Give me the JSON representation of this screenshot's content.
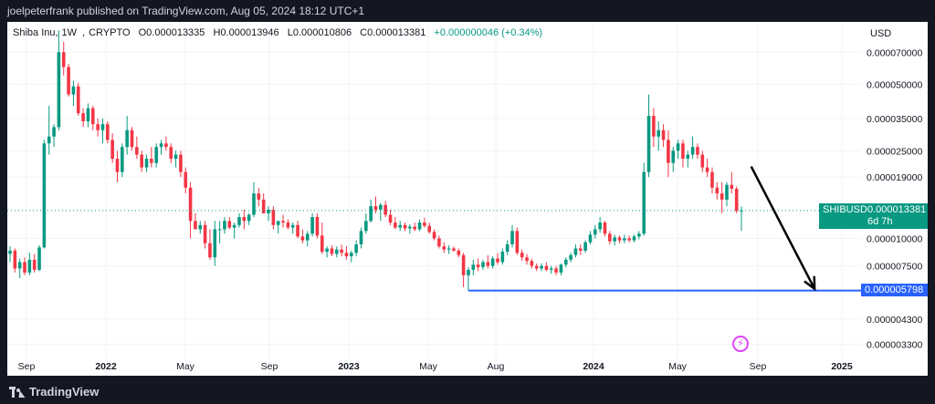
{
  "publisher": "joelpeterfrank published on TradingView.com, Aug 05, 2024 18:12 UTC+1",
  "legend": {
    "symbol": "Shiba Inu",
    "interval": "1W",
    "exchange": "CRYPTO",
    "open": "O0.000013335",
    "high": "H0.000013946",
    "low": "L0.000010806",
    "close": "C0.000013381",
    "change": "+0.000000046 (+0.34%)"
  },
  "currency": "USD",
  "price_tag": {
    "symbol": "SHIBUSD",
    "price": "0.000013381",
    "countdown": "6d 7h"
  },
  "level_tag": "0.000005798",
  "brand": "TradingView",
  "colors": {
    "up": "#089981",
    "down": "#f23645",
    "line": "#2962ff",
    "background": "#ffffff",
    "dark": "#131722"
  },
  "chart_data": {
    "type": "candlestick",
    "title": "Shiba Inu, 1W, CRYPTO",
    "scale": "log",
    "ylim": [
      2.6e-06,
      9.6e-05
    ],
    "y_ticks": [
      "0.000070000",
      "0.000050000",
      "0.000035000",
      "0.000025000",
      "0.000019000",
      "0.000010000",
      "0.000007500",
      "0.000004300",
      "0.000003300"
    ],
    "x_ticks": [
      "Sep",
      "2022",
      "May",
      "Sep",
      "2023",
      "May",
      "Aug",
      "2024",
      "May",
      "Sep",
      "2025"
    ],
    "horizontal_line": {
      "value": 5.798e-06,
      "from_index": 94,
      "to_index": 172
    },
    "arrow": {
      "from_index": 152,
      "from_value": 2.12e-05,
      "to_index": 165,
      "to_value": 5.9e-06
    },
    "last_close": 1.3381e-05,
    "candles": [
      {
        "o": 8.5e-06,
        "h": 9.2e-06,
        "l": 7.8e-06,
        "c": 8.8e-06
      },
      {
        "o": 8.8e-06,
        "h": 9e-06,
        "l": 7e-06,
        "c": 7.3e-06
      },
      {
        "o": 7.3e-06,
        "h": 8.1e-06,
        "l": 6.6e-06,
        "c": 7.8e-06
      },
      {
        "o": 7.8e-06,
        "h": 8.2e-06,
        "l": 6.8e-06,
        "c": 7e-06
      },
      {
        "o": 7e-06,
        "h": 8.6e-06,
        "l": 6.8e-06,
        "c": 8e-06
      },
      {
        "o": 8e-06,
        "h": 8.5e-06,
        "l": 7e-06,
        "c": 7.2e-06
      },
      {
        "o": 7.2e-06,
        "h": 9.3e-06,
        "l": 7.1e-06,
        "c": 9.1e-06
      },
      {
        "o": 9.1e-06,
        "h": 2.8e-05,
        "l": 9e-06,
        "c": 2.7e-05
      },
      {
        "o": 2.7e-05,
        "h": 4e-05,
        "l": 2.4e-05,
        "c": 2.9e-05
      },
      {
        "o": 2.9e-05,
        "h": 3.3e-05,
        "l": 2.6e-05,
        "c": 3.2e-05
      },
      {
        "o": 3.2e-05,
        "h": 8.8e-05,
        "l": 3.1e-05,
        "c": 7e-05
      },
      {
        "o": 7e-05,
        "h": 7.8e-05,
        "l": 5.5e-05,
        "c": 6e-05
      },
      {
        "o": 6e-05,
        "h": 6.2e-05,
        "l": 4.4e-05,
        "c": 4.5e-05
      },
      {
        "o": 4.5e-05,
        "h": 5.2e-05,
        "l": 4e-05,
        "c": 4.9e-05
      },
      {
        "o": 4.9e-05,
        "h": 5.1e-05,
        "l": 3.6e-05,
        "c": 3.7e-05
      },
      {
        "o": 3.7e-05,
        "h": 3.9e-05,
        "l": 3.2e-05,
        "c": 3.4e-05
      },
      {
        "o": 3.4e-05,
        "h": 4.1e-05,
        "l": 3.2e-05,
        "c": 3.9e-05
      },
      {
        "o": 3.9e-05,
        "h": 4e-05,
        "l": 3.1e-05,
        "c": 3.3e-05
      },
      {
        "o": 3.3e-05,
        "h": 3.5e-05,
        "l": 2.9e-05,
        "c": 3.1e-05
      },
      {
        "o": 3.1e-05,
        "h": 3.5e-05,
        "l": 2.7e-05,
        "c": 3.3e-05
      },
      {
        "o": 3.3e-05,
        "h": 3.4e-05,
        "l": 2.7e-05,
        "c": 2.8e-05
      },
      {
        "o": 2.8e-05,
        "h": 3e-05,
        "l": 2.2e-05,
        "c": 2.3e-05
      },
      {
        "o": 2.3e-05,
        "h": 2.5e-05,
        "l": 1.8e-05,
        "c": 2e-05
      },
      {
        "o": 2e-05,
        "h": 2.7e-05,
        "l": 1.9e-05,
        "c": 2.6e-05
      },
      {
        "o": 2.6e-05,
        "h": 3.6e-05,
        "l": 2.4e-05,
        "c": 3.1e-05
      },
      {
        "o": 3.1e-05,
        "h": 3.2e-05,
        "l": 2.5e-05,
        "c": 2.6e-05
      },
      {
        "o": 2.6e-05,
        "h": 2.9e-05,
        "l": 2.3e-05,
        "c": 2.4e-05
      },
      {
        "o": 2.4e-05,
        "h": 2.5e-05,
        "l": 2e-05,
        "c": 2.1e-05
      },
      {
        "o": 2.1e-05,
        "h": 2.4e-05,
        "l": 2e-05,
        "c": 2.3e-05
      },
      {
        "o": 2.3e-05,
        "h": 2.6e-05,
        "l": 2.1e-05,
        "c": 2.2e-05
      },
      {
        "o": 2.2e-05,
        "h": 2.7e-05,
        "l": 2.1e-05,
        "c": 2.6e-05
      },
      {
        "o": 2.6e-05,
        "h": 2.8e-05,
        "l": 2.4e-05,
        "c": 2.7e-05
      },
      {
        "o": 2.7e-05,
        "h": 2.9e-05,
        "l": 2.5e-05,
        "c": 2.6e-05
      },
      {
        "o": 2.6e-05,
        "h": 2.7e-05,
        "l": 2.2e-05,
        "c": 2.3e-05
      },
      {
        "o": 2.3e-05,
        "h": 2.5e-05,
        "l": 2.1e-05,
        "c": 2.4e-05
      },
      {
        "o": 2.4e-05,
        "h": 2.5e-05,
        "l": 1.9e-05,
        "c": 2e-05
      },
      {
        "o": 2e-05,
        "h": 2.1e-05,
        "l": 1.6e-05,
        "c": 1.7e-05
      },
      {
        "o": 1.7e-05,
        "h": 1.8e-05,
        "l": 1e-05,
        "c": 1.2e-05
      },
      {
        "o": 1.2e-05,
        "h": 1.3e-05,
        "l": 1.1e-05,
        "c": 1.1e-05
      },
      {
        "o": 1.1e-05,
        "h": 1.2e-05,
        "l": 1.05e-05,
        "c": 1.15e-05
      },
      {
        "o": 1.15e-05,
        "h": 1.2e-05,
        "l": 9e-06,
        "c": 9.5e-06
      },
      {
        "o": 9.5e-06,
        "h": 1.1e-05,
        "l": 8e-06,
        "c": 8.2e-06
      },
      {
        "o": 8.2e-06,
        "h": 1.2e-05,
        "l": 7.5e-06,
        "c": 1.1e-05
      },
      {
        "o": 1.1e-05,
        "h": 1.2e-05,
        "l": 9.5e-06,
        "c": 1.1e-05
      },
      {
        "o": 1.1e-05,
        "h": 1.25e-05,
        "l": 1.05e-05,
        "c": 1.2e-05
      },
      {
        "o": 1.2e-05,
        "h": 1.25e-05,
        "l": 1.1e-05,
        "c": 1.12e-05
      },
      {
        "o": 1.12e-05,
        "h": 1.18e-05,
        "l": 1e-05,
        "c": 1.15e-05
      },
      {
        "o": 1.15e-05,
        "h": 1.3e-05,
        "l": 1.12e-05,
        "c": 1.25e-05
      },
      {
        "o": 1.25e-05,
        "h": 1.35e-05,
        "l": 1.1e-05,
        "c": 1.2e-05
      },
      {
        "o": 1.2e-05,
        "h": 1.3e-05,
        "l": 1.15e-05,
        "c": 1.28e-05
      },
      {
        "o": 1.28e-05,
        "h": 1.8e-05,
        "l": 1.25e-05,
        "c": 1.6e-05
      },
      {
        "o": 1.6e-05,
        "h": 1.7e-05,
        "l": 1.4e-05,
        "c": 1.5e-05
      },
      {
        "o": 1.5e-05,
        "h": 1.6e-05,
        "l": 1.3e-05,
        "c": 1.3e-05
      },
      {
        "o": 1.3e-05,
        "h": 1.4e-05,
        "l": 1.2e-05,
        "c": 1.35e-05
      },
      {
        "o": 1.35e-05,
        "h": 1.4e-05,
        "l": 1.1e-05,
        "c": 1.15e-05
      },
      {
        "o": 1.15e-05,
        "h": 1.2e-05,
        "l": 1.05e-05,
        "c": 1.2e-05
      },
      {
        "o": 1.2e-05,
        "h": 1.28e-05,
        "l": 1.12e-05,
        "c": 1.18e-05
      },
      {
        "o": 1.18e-05,
        "h": 1.22e-05,
        "l": 1.1e-05,
        "c": 1.12e-05
      },
      {
        "o": 1.12e-05,
        "h": 1.18e-05,
        "l": 1.05e-05,
        "c": 1.15e-05
      },
      {
        "o": 1.15e-05,
        "h": 1.2e-05,
        "l": 1e-05,
        "c": 1.02e-05
      },
      {
        "o": 1.02e-05,
        "h": 1.1e-05,
        "l": 9.5e-06,
        "c": 9.8e-06
      },
      {
        "o": 9.8e-06,
        "h": 1.08e-05,
        "l": 9.2e-06,
        "c": 1.05e-05
      },
      {
        "o": 1.05e-05,
        "h": 1.3e-05,
        "l": 1.02e-05,
        "c": 1.25e-05
      },
      {
        "o": 1.25e-05,
        "h": 1.3e-05,
        "l": 1e-05,
        "c": 1.03e-05
      },
      {
        "o": 1.03e-05,
        "h": 1.18e-05,
        "l": 8.5e-06,
        "c": 8.7e-06
      },
      {
        "o": 8.7e-06,
        "h": 9.2e-06,
        "l": 8.2e-06,
        "c": 9e-06
      },
      {
        "o": 9e-06,
        "h": 9.3e-06,
        "l": 8.3e-06,
        "c": 8.5e-06
      },
      {
        "o": 8.5e-06,
        "h": 9.2e-06,
        "l": 8.2e-06,
        "c": 8.9e-06
      },
      {
        "o": 8.9e-06,
        "h": 9.4e-06,
        "l": 8.3e-06,
        "c": 8.6e-06
      },
      {
        "o": 8.6e-06,
        "h": 9.2e-06,
        "l": 8e-06,
        "c": 8.3e-06
      },
      {
        "o": 8.3e-06,
        "h": 8.8e-06,
        "l": 7.8e-06,
        "c": 8.6e-06
      },
      {
        "o": 8.6e-06,
        "h": 9.8e-06,
        "l": 8.3e-06,
        "c": 9.4e-06
      },
      {
        "o": 9.4e-06,
        "h": 1.12e-05,
        "l": 9e-06,
        "c": 1.08e-05
      },
      {
        "o": 1.08e-05,
        "h": 1.3e-05,
        "l": 1.05e-05,
        "c": 1.2e-05
      },
      {
        "o": 1.2e-05,
        "h": 1.5e-05,
        "l": 1.18e-05,
        "c": 1.4e-05
      },
      {
        "o": 1.4e-05,
        "h": 1.55e-05,
        "l": 1.3e-05,
        "c": 1.35e-05
      },
      {
        "o": 1.35e-05,
        "h": 1.45e-05,
        "l": 1.2e-05,
        "c": 1.42e-05
      },
      {
        "o": 1.42e-05,
        "h": 1.48e-05,
        "l": 1.25e-05,
        "c": 1.28e-05
      },
      {
        "o": 1.28e-05,
        "h": 1.35e-05,
        "l": 1.15e-05,
        "c": 1.18e-05
      },
      {
        "o": 1.18e-05,
        "h": 1.25e-05,
        "l": 1.1e-05,
        "c": 1.12e-05
      },
      {
        "o": 1.12e-05,
        "h": 1.2e-05,
        "l": 1.08e-05,
        "c": 1.15e-05
      },
      {
        "o": 1.15e-05,
        "h": 1.18e-05,
        "l": 1.08e-05,
        "c": 1.11e-05
      },
      {
        "o": 1.11e-05,
        "h": 1.16e-05,
        "l": 1.05e-05,
        "c": 1.13e-05
      },
      {
        "o": 1.13e-05,
        "h": 1.18e-05,
        "l": 1.08e-05,
        "c": 1.1e-05
      },
      {
        "o": 1.1e-05,
        "h": 1.22e-05,
        "l": 1.08e-05,
        "c": 1.18e-05
      },
      {
        "o": 1.18e-05,
        "h": 1.24e-05,
        "l": 1.12e-05,
        "c": 1.14e-05
      },
      {
        "o": 1.14e-05,
        "h": 1.18e-05,
        "l": 1.05e-05,
        "c": 1.07e-05
      },
      {
        "o": 1.07e-05,
        "h": 1.1e-05,
        "l": 9.8e-06,
        "c": 1e-05
      },
      {
        "o": 1e-05,
        "h": 1.03e-05,
        "l": 9e-06,
        "c": 9.2e-06
      },
      {
        "o": 9.2e-06,
        "h": 9.6e-06,
        "l": 8.6e-06,
        "c": 8.9e-06
      },
      {
        "o": 8.9e-06,
        "h": 9.3e-06,
        "l": 8.5e-06,
        "c": 9e-06
      },
      {
        "o": 9e-06,
        "h": 9.2e-06,
        "l": 8.7e-06,
        "c": 8.8e-06
      },
      {
        "o": 8.8e-06,
        "h": 9e-06,
        "l": 8.2e-06,
        "c": 8.4e-06
      },
      {
        "o": 8.4e-06,
        "h": 8.6e-06,
        "l": 6e-06,
        "c": 6.8e-06
      },
      {
        "o": 6.8e-06,
        "h": 7.4e-06,
        "l": 5.8e-06,
        "c": 7.2e-06
      },
      {
        "o": 7.2e-06,
        "h": 8e-06,
        "l": 6.8e-06,
        "c": 7.6e-06
      },
      {
        "o": 7.6e-06,
        "h": 8.1e-06,
        "l": 7.1e-06,
        "c": 7.4e-06
      },
      {
        "o": 7.4e-06,
        "h": 8e-06,
        "l": 7.2e-06,
        "c": 7.8e-06
      },
      {
        "o": 7.8e-06,
        "h": 8.4e-06,
        "l": 7.3e-06,
        "c": 7.5e-06
      },
      {
        "o": 7.5e-06,
        "h": 8.3e-06,
        "l": 7.3e-06,
        "c": 8.1e-06
      },
      {
        "o": 8.1e-06,
        "h": 8.6e-06,
        "l": 7.6e-06,
        "c": 7.8e-06
      },
      {
        "o": 7.8e-06,
        "h": 9e-06,
        "l": 7.6e-06,
        "c": 8.7e-06
      },
      {
        "o": 8.7e-06,
        "h": 9.8e-06,
        "l": 8.4e-06,
        "c": 9.4e-06
      },
      {
        "o": 9.4e-06,
        "h": 1.15e-05,
        "l": 9.1e-06,
        "c": 1.08e-05
      },
      {
        "o": 1.08e-05,
        "h": 1.12e-05,
        "l": 8.4e-06,
        "c": 8.6e-06
      },
      {
        "o": 8.6e-06,
        "h": 8.9e-06,
        "l": 7.9e-06,
        "c": 8.2e-06
      },
      {
        "o": 8.2e-06,
        "h": 8.5e-06,
        "l": 7.6e-06,
        "c": 7.9e-06
      },
      {
        "o": 7.9e-06,
        "h": 8.1e-06,
        "l": 7.3e-06,
        "c": 7.5e-06
      },
      {
        "o": 7.5e-06,
        "h": 7.7e-06,
        "l": 7.1e-06,
        "c": 7.3e-06
      },
      {
        "o": 7.3e-06,
        "h": 7.7e-06,
        "l": 7.1e-06,
        "c": 7.5e-06
      },
      {
        "o": 7.5e-06,
        "h": 7.8e-06,
        "l": 7.1e-06,
        "c": 7.2e-06
      },
      {
        "o": 7.2e-06,
        "h": 7.5e-06,
        "l": 6.9e-06,
        "c": 7.3e-06
      },
      {
        "o": 7.3e-06,
        "h": 7.5e-06,
        "l": 6.8e-06,
        "c": 7e-06
      },
      {
        "o": 7e-06,
        "h": 7.7e-06,
        "l": 6.8e-06,
        "c": 7.6e-06
      },
      {
        "o": 7.6e-06,
        "h": 8.2e-06,
        "l": 7.4e-06,
        "c": 8e-06
      },
      {
        "o": 8e-06,
        "h": 8.6e-06,
        "l": 7.8e-06,
        "c": 8.4e-06
      },
      {
        "o": 8.4e-06,
        "h": 9.4e-06,
        "l": 8.2e-06,
        "c": 9e-06
      },
      {
        "o": 9e-06,
        "h": 9.4e-06,
        "l": 8.4e-06,
        "c": 8.8e-06
      },
      {
        "o": 8.8e-06,
        "h": 9.8e-06,
        "l": 8.6e-06,
        "c": 9.6e-06
      },
      {
        "o": 9.6e-06,
        "h": 1.08e-05,
        "l": 9.4e-06,
        "c": 1.04e-05
      },
      {
        "o": 1.04e-05,
        "h": 1.15e-05,
        "l": 1e-05,
        "c": 1.1e-05
      },
      {
        "o": 1.1e-05,
        "h": 1.25e-05,
        "l": 1.06e-05,
        "c": 1.18e-05
      },
      {
        "o": 1.18e-05,
        "h": 1.2e-05,
        "l": 1.02e-05,
        "c": 1.05e-05
      },
      {
        "o": 1.05e-05,
        "h": 1.08e-05,
        "l": 9.4e-06,
        "c": 9.7e-06
      },
      {
        "o": 9.7e-06,
        "h": 1.04e-05,
        "l": 9.3e-06,
        "c": 1.01e-05
      },
      {
        "o": 1.01e-05,
        "h": 1.03e-05,
        "l": 9.5e-06,
        "c": 9.8e-06
      },
      {
        "o": 9.8e-06,
        "h": 1.04e-05,
        "l": 9.5e-06,
        "c": 1e-05
      },
      {
        "o": 1e-05,
        "h": 1.03e-05,
        "l": 9.6e-06,
        "c": 9.8e-06
      },
      {
        "o": 9.8e-06,
        "h": 1.04e-05,
        "l": 9.6e-06,
        "c": 1.02e-05
      },
      {
        "o": 1.02e-05,
        "h": 1.08e-05,
        "l": 9.9e-06,
        "c": 1.05e-05
      },
      {
        "o": 1.05e-05,
        "h": 2.2e-05,
        "l": 1.03e-05,
        "c": 2e-05
      },
      {
        "o": 2e-05,
        "h": 4.5e-05,
        "l": 1.9e-05,
        "c": 3.6e-05
      },
      {
        "o": 3.6e-05,
        "h": 3.9e-05,
        "l": 2.6e-05,
        "c": 2.9e-05
      },
      {
        "o": 2.9e-05,
        "h": 3.4e-05,
        "l": 2.5e-05,
        "c": 3.1e-05
      },
      {
        "o": 3.1e-05,
        "h": 3.3e-05,
        "l": 2.6e-05,
        "c": 2.8e-05
      },
      {
        "o": 2.8e-05,
        "h": 3.1e-05,
        "l": 1.9e-05,
        "c": 2.2e-05
      },
      {
        "o": 2.2e-05,
        "h": 2.6e-05,
        "l": 2e-05,
        "c": 2.5e-05
      },
      {
        "o": 2.5e-05,
        "h": 2.8e-05,
        "l": 2.3e-05,
        "c": 2.7e-05
      },
      {
        "o": 2.7e-05,
        "h": 2.8e-05,
        "l": 2.1e-05,
        "c": 2.3e-05
      },
      {
        "o": 2.3e-05,
        "h": 2.5e-05,
        "l": 2.1e-05,
        "c": 2.4e-05
      },
      {
        "o": 2.4e-05,
        "h": 2.9e-05,
        "l": 2.3e-05,
        "c": 2.6e-05
      },
      {
        "o": 2.6e-05,
        "h": 2.7e-05,
        "l": 2.3e-05,
        "c": 2.4e-05
      },
      {
        "o": 2.4e-05,
        "h": 2.5e-05,
        "l": 2e-05,
        "c": 2.1e-05
      },
      {
        "o": 2.1e-05,
        "h": 2.3e-05,
        "l": 1.9e-05,
        "c": 2e-05
      },
      {
        "o": 2e-05,
        "h": 2.1e-05,
        "l": 1.6e-05,
        "c": 1.7e-05
      },
      {
        "o": 1.7e-05,
        "h": 1.8e-05,
        "l": 1.5e-05,
        "c": 1.6e-05
      },
      {
        "o": 1.6e-05,
        "h": 1.8e-05,
        "l": 1.3e-05,
        "c": 1.5e-05
      },
      {
        "o": 1.5e-05,
        "h": 1.8e-05,
        "l": 1.4e-05,
        "c": 1.75e-05
      },
      {
        "o": 1.75e-05,
        "h": 2e-05,
        "l": 1.6e-05,
        "c": 1.68e-05
      },
      {
        "o": 1.68e-05,
        "h": 1.72e-05,
        "l": 1.3e-05,
        "c": 1.3335e-05
      },
      {
        "o": 1.3335e-05,
        "h": 1.3946e-05,
        "l": 1.0806e-05,
        "c": 1.3381e-05
      }
    ]
  }
}
